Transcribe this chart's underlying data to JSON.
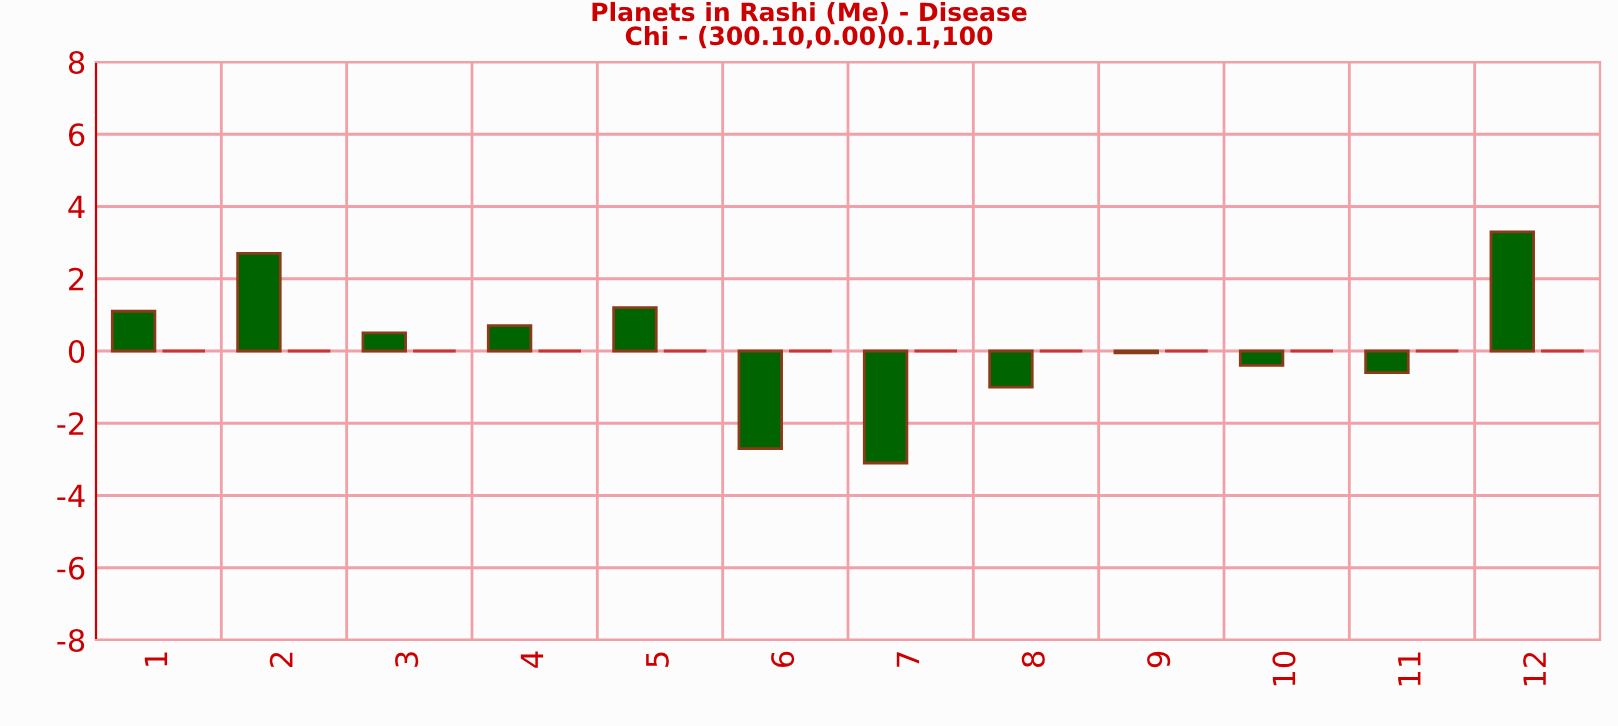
{
  "chart_data": {
    "type": "bar",
    "title": "Planets in Rashi (Me) - Disease",
    "subtitle": "Chi - (300.10,0.00)0.1,100",
    "categories": [
      "1",
      "2",
      "3",
      "4",
      "5",
      "6",
      "7",
      "8",
      "9",
      "10",
      "11",
      "12"
    ],
    "series": [
      {
        "color": "#006400",
        "values": [
          1.1,
          2.7,
          0.5,
          0.7,
          1.2,
          -2.7,
          -3.1,
          -1.0,
          -0.05,
          -0.4,
          -0.6,
          3.3
        ]
      },
      {
        "color": "#cc3333",
        "values": [
          0,
          0,
          0,
          0,
          0,
          0,
          0,
          0,
          0,
          0,
          0,
          0
        ]
      }
    ],
    "ylim": [
      -8,
      8
    ],
    "yticks": [
      -8,
      -6,
      -4,
      -2,
      0,
      2,
      4,
      6,
      8
    ],
    "grid": true,
    "legend": false
  }
}
